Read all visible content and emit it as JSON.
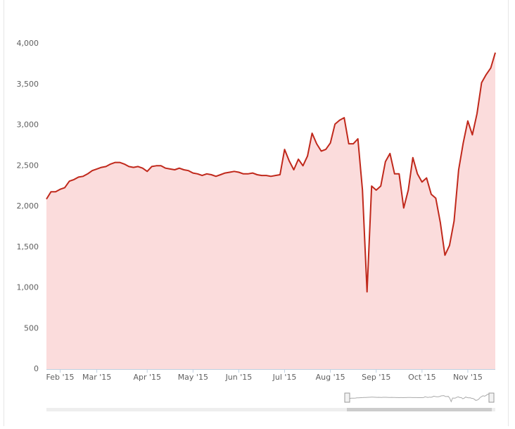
{
  "chart_data": {
    "type": "area",
    "categories": [
      null,
      null,
      null,
      "Feb '15",
      null,
      null,
      null,
      null,
      null,
      null,
      null,
      "Mar '15",
      null,
      null,
      null,
      null,
      null,
      null,
      null,
      null,
      null,
      null,
      "Apr '15",
      null,
      null,
      null,
      null,
      null,
      null,
      null,
      null,
      null,
      "May '15",
      null,
      null,
      null,
      null,
      null,
      null,
      null,
      null,
      null,
      "Jun '15",
      null,
      null,
      null,
      null,
      null,
      null,
      null,
      null,
      null,
      "Jul '15",
      null,
      null,
      null,
      null,
      null,
      null,
      null,
      null,
      null,
      "Aug '15",
      null,
      null,
      null,
      null,
      null,
      null,
      null,
      null,
      null,
      "Sep '15",
      null,
      null,
      null,
      null,
      null,
      null,
      null,
      null,
      null,
      "Oct '15",
      null,
      null,
      null,
      null,
      null,
      null,
      null,
      null,
      null,
      "Nov '15",
      null,
      null,
      null,
      null,
      null,
      null
    ],
    "values": [
      2090,
      2180,
      2180,
      2210,
      2230,
      2310,
      2330,
      2360,
      2370,
      2400,
      2440,
      2460,
      2480,
      2490,
      2520,
      2540,
      2540,
      2520,
      2490,
      2480,
      2490,
      2470,
      2430,
      2490,
      2500,
      2500,
      2470,
      2460,
      2450,
      2470,
      2450,
      2440,
      2410,
      2400,
      2380,
      2400,
      2390,
      2370,
      2390,
      2410,
      2420,
      2430,
      2420,
      2400,
      2400,
      2410,
      2390,
      2380,
      2380,
      2370,
      2380,
      2390,
      2700,
      2560,
      2450,
      2580,
      2500,
      2620,
      2900,
      2770,
      2680,
      2700,
      2780,
      3010,
      3060,
      3090,
      2770,
      2770,
      2830,
      2200,
      950,
      2250,
      2200,
      2250,
      2550,
      2650,
      2400,
      2400,
      1980,
      2200,
      2600,
      2400,
      2300,
      2350,
      2150,
      2100,
      1800,
      1400,
      1520,
      1820,
      2450,
      2780,
      3050,
      2880,
      3140,
      3520,
      3620,
      3700,
      3890
    ],
    "color": "#c0281b",
    "fill": "#fbdcdc",
    "ylim": [
      0,
      4000
    ],
    "yticks": [
      0,
      500,
      {
        "value": 1000,
        "label": "1,000"
      },
      {
        "value": 1500,
        "label": "1,500"
      },
      {
        "value": 2000,
        "label": "2,000"
      },
      {
        "value": 2500,
        "label": "2,500"
      },
      {
        "value": 3000,
        "label": "3,000"
      },
      {
        "value": 3500,
        "label": "3,500"
      },
      {
        "value": 4000,
        "label": "4,000"
      }
    ],
    "grid": false
  }
}
